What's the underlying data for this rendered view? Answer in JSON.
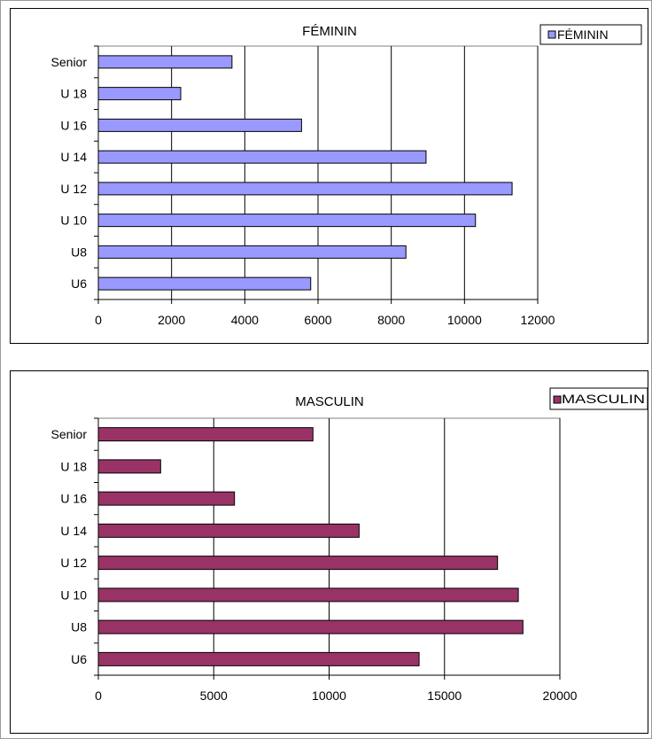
{
  "chart_data": [
    {
      "type": "bar",
      "orientation": "horizontal",
      "title": "FÉMININ",
      "categories": [
        "U6",
        "U8",
        "U10",
        "U12",
        "U14",
        "U16",
        "U 18",
        "Senior"
      ],
      "category_labels": [
        "U6",
        "U8",
        "U 10",
        "U 12",
        "U 14",
        "U 16",
        "U 18",
        "Senior"
      ],
      "series": [
        {
          "name": "FÉMININ",
          "values": [
            5800,
            8400,
            10300,
            11300,
            8950,
            5550,
            2250,
            3650
          ]
        }
      ],
      "xlim": [
        0,
        12000
      ],
      "xticks": [
        0,
        2000,
        4000,
        6000,
        8000,
        10000,
        12000
      ],
      "grid": true,
      "legend_position": "top-right",
      "colors": {
        "bar": "#9999ff",
        "bar_border": "#000000",
        "plot_border": "#808080"
      }
    },
    {
      "type": "bar",
      "orientation": "horizontal",
      "title": "MASCULIN",
      "categories": [
        "U6",
        "U8",
        "U10",
        "U12",
        "U14",
        "U16",
        "U 18",
        "Senior"
      ],
      "category_labels": [
        "U6",
        "U8",
        "U 10",
        "U 12",
        "U 14",
        "U 16",
        "U 18",
        "Senior"
      ],
      "series": [
        {
          "name": "MASCULIN",
          "values": [
            13900,
            18400,
            18200,
            17300,
            11300,
            5900,
            2700,
            9300
          ]
        }
      ],
      "xlim": [
        0,
        20000
      ],
      "xticks": [
        0,
        5000,
        10000,
        15000,
        20000
      ],
      "grid": true,
      "legend_position": "top-right",
      "colors": {
        "bar": "#993366",
        "bar_border": "#000000",
        "plot_border": "#808080"
      }
    }
  ]
}
